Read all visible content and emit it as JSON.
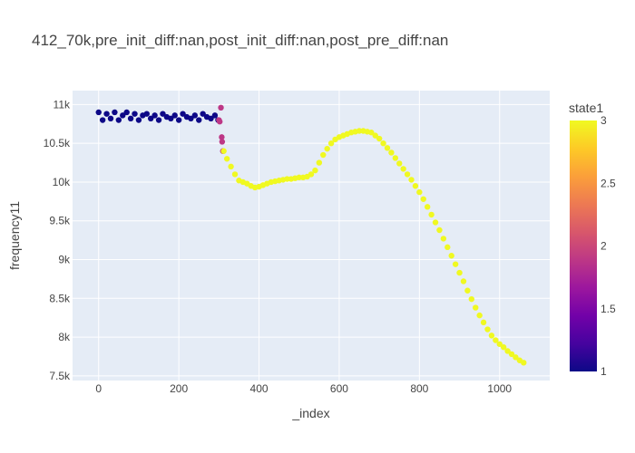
{
  "chart_data": {
    "type": "scatter",
    "title": "412_70k,pre_init_diff:nan,post_init_diff:nan,post_pre_diff:nan",
    "xlabel": "_index",
    "ylabel": "frequency11",
    "xlim": [
      -65,
      1125
    ],
    "ylim": [
      7440,
      11180
    ],
    "x_ticks": [
      0,
      200,
      400,
      600,
      800,
      1000
    ],
    "x_tick_labels": [
      "0",
      "200",
      "400",
      "600",
      "800",
      "1000"
    ],
    "y_ticks": [
      7500,
      8000,
      8500,
      9000,
      9500,
      10000,
      10500,
      11000
    ],
    "y_tick_labels": [
      "7.5k",
      "8k",
      "8.5k",
      "9k",
      "9.5k",
      "10k",
      "10.5k",
      "11k"
    ],
    "grid": true,
    "plot_background": "#e5ecf6",
    "colorbar": {
      "title": "state1",
      "min": 1,
      "max": 3,
      "ticks": [
        1,
        1.5,
        2,
        2.5,
        3
      ],
      "tick_labels": [
        "1",
        "1.5",
        "2",
        "2.5",
        "3"
      ],
      "colorscale": [
        "#0d0887",
        "#46039f",
        "#7201a8",
        "#9c179e",
        "#bd3786",
        "#d8576b",
        "#ed7953",
        "#fb9f3a",
        "#fdca26",
        "#f0f921"
      ]
    },
    "series": [
      {
        "state": 1,
        "color": "#0d0887",
        "points": [
          [
            0,
            10900
          ],
          [
            10,
            10800
          ],
          [
            20,
            10880
          ],
          [
            30,
            10820
          ],
          [
            40,
            10900
          ],
          [
            50,
            10800
          ],
          [
            60,
            10860
          ],
          [
            70,
            10900
          ],
          [
            80,
            10820
          ],
          [
            90,
            10880
          ],
          [
            100,
            10800
          ],
          [
            110,
            10860
          ],
          [
            120,
            10880
          ],
          [
            130,
            10820
          ],
          [
            140,
            10860
          ],
          [
            150,
            10800
          ],
          [
            160,
            10880
          ],
          [
            170,
            10840
          ],
          [
            180,
            10820
          ],
          [
            190,
            10860
          ],
          [
            200,
            10800
          ],
          [
            210,
            10880
          ],
          [
            220,
            10840
          ],
          [
            230,
            10820
          ],
          [
            240,
            10860
          ],
          [
            250,
            10800
          ],
          [
            260,
            10880
          ],
          [
            270,
            10840
          ],
          [
            280,
            10820
          ],
          [
            290,
            10860
          ],
          [
            298,
            10800
          ]
        ]
      },
      {
        "state": 2,
        "color": "#bd3786",
        "points": [
          [
            300,
            10800
          ],
          [
            302,
            10780
          ],
          [
            305,
            10960
          ],
          [
            307,
            10580
          ],
          [
            308,
            10520
          ],
          [
            310,
            10400
          ]
        ]
      },
      {
        "state": 3,
        "color": "#f0f921",
        "points": [
          [
            312,
            10400
          ],
          [
            320,
            10300
          ],
          [
            330,
            10200
          ],
          [
            340,
            10100
          ],
          [
            350,
            10020
          ],
          [
            360,
            10000
          ],
          [
            370,
            9980
          ],
          [
            380,
            9950
          ],
          [
            390,
            9930
          ],
          [
            400,
            9940
          ],
          [
            410,
            9960
          ],
          [
            420,
            9980
          ],
          [
            430,
            10000
          ],
          [
            440,
            10010
          ],
          [
            450,
            10020
          ],
          [
            460,
            10030
          ],
          [
            470,
            10040
          ],
          [
            480,
            10040
          ],
          [
            490,
            10050
          ],
          [
            500,
            10060
          ],
          [
            510,
            10060
          ],
          [
            520,
            10070
          ],
          [
            530,
            10100
          ],
          [
            540,
            10150
          ],
          [
            550,
            10250
          ],
          [
            560,
            10350
          ],
          [
            570,
            10430
          ],
          [
            580,
            10500
          ],
          [
            590,
            10550
          ],
          [
            600,
            10580
          ],
          [
            610,
            10600
          ],
          [
            620,
            10620
          ],
          [
            630,
            10640
          ],
          [
            640,
            10650
          ],
          [
            650,
            10660
          ],
          [
            660,
            10660
          ],
          [
            670,
            10650
          ],
          [
            680,
            10640
          ],
          [
            690,
            10600
          ],
          [
            700,
            10560
          ],
          [
            710,
            10500
          ],
          [
            720,
            10440
          ],
          [
            730,
            10380
          ],
          [
            740,
            10310
          ],
          [
            750,
            10240
          ],
          [
            760,
            10170
          ],
          [
            770,
            10100
          ],
          [
            780,
            10030
          ],
          [
            790,
            9950
          ],
          [
            800,
            9870
          ],
          [
            810,
            9780
          ],
          [
            820,
            9680
          ],
          [
            830,
            9580
          ],
          [
            840,
            9480
          ],
          [
            850,
            9380
          ],
          [
            860,
            9270
          ],
          [
            870,
            9160
          ],
          [
            880,
            9050
          ],
          [
            890,
            8940
          ],
          [
            900,
            8830
          ],
          [
            910,
            8720
          ],
          [
            920,
            8600
          ],
          [
            930,
            8490
          ],
          [
            940,
            8380
          ],
          [
            950,
            8280
          ],
          [
            960,
            8190
          ],
          [
            970,
            8100
          ],
          [
            980,
            8020
          ],
          [
            990,
            7960
          ],
          [
            1000,
            7910
          ],
          [
            1010,
            7870
          ],
          [
            1020,
            7820
          ],
          [
            1030,
            7780
          ],
          [
            1040,
            7740
          ],
          [
            1050,
            7700
          ],
          [
            1060,
            7670
          ]
        ]
      }
    ]
  }
}
